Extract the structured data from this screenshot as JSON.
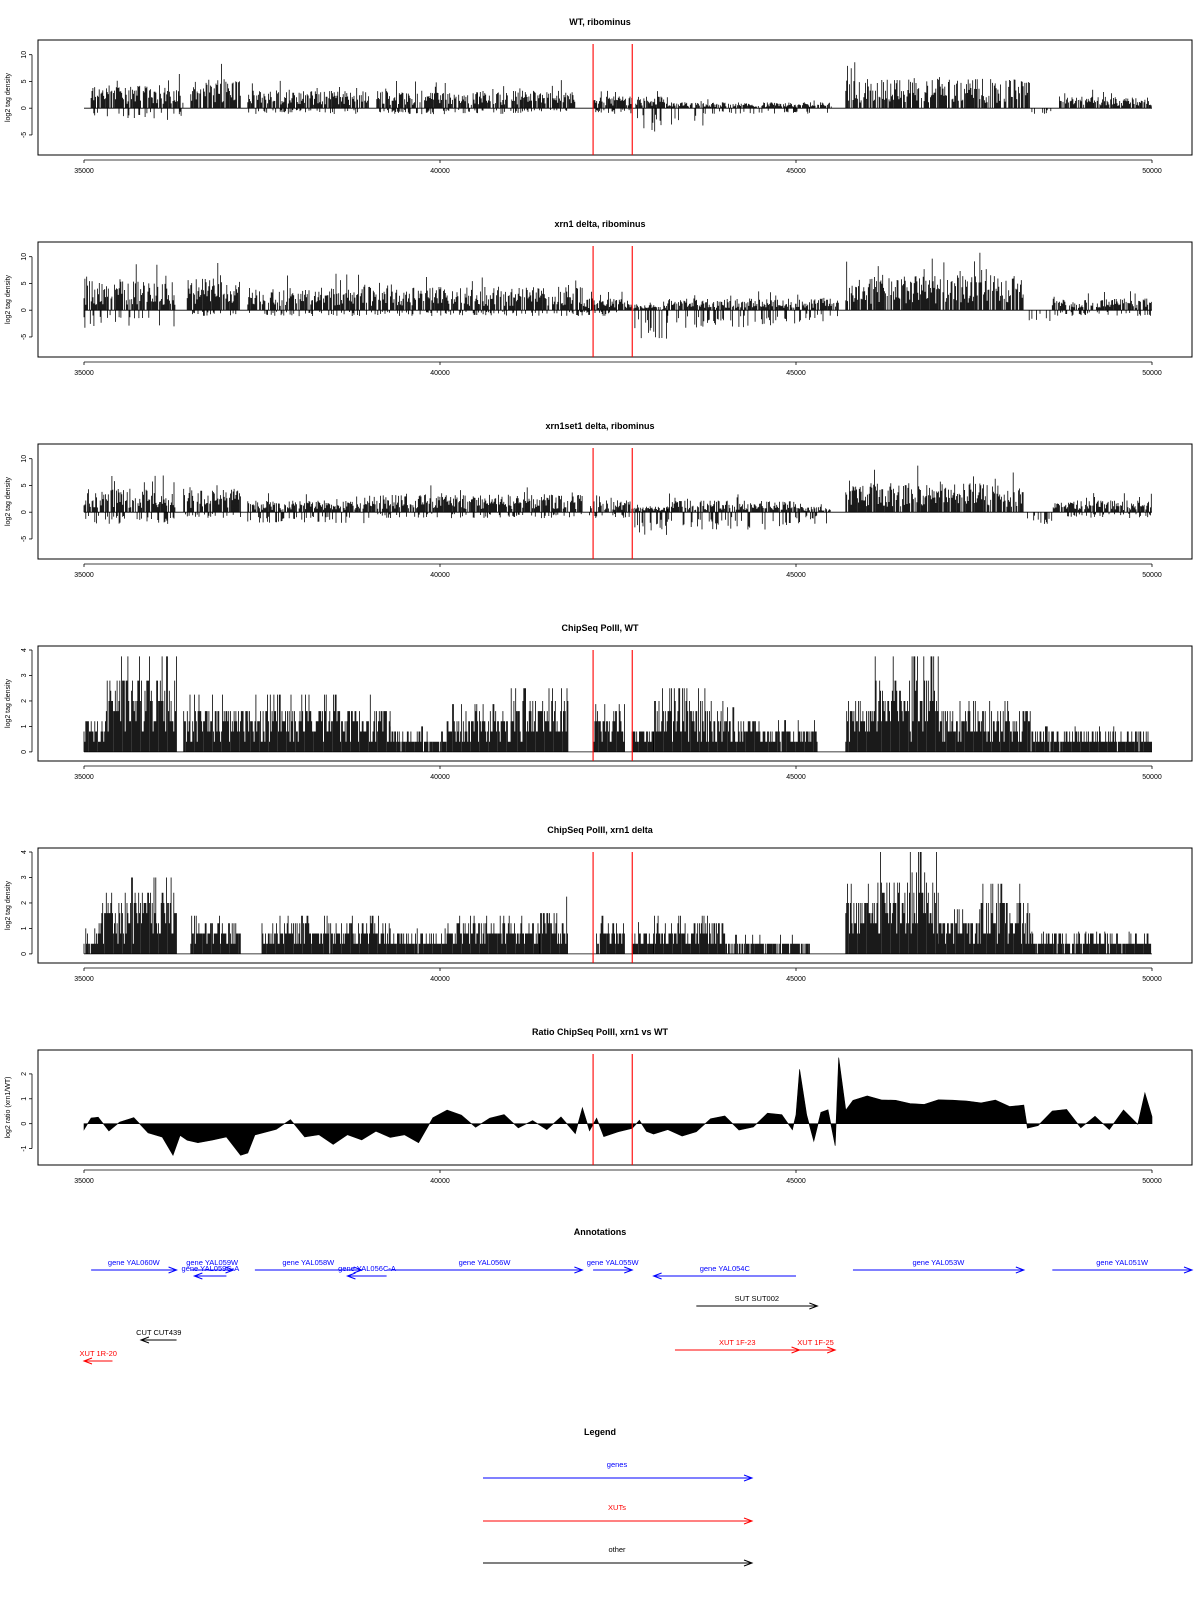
{
  "colors": {
    "gene": "#0000ff",
    "xut": "#ff0000",
    "other": "#000000",
    "marker": "#ff0000",
    "signal": "#000000"
  },
  "chart_data": [
    {
      "type": "bar",
      "title": "WT, ribominus",
      "ylabel": "log2 tag density",
      "xlim": [
        35000,
        50000
      ],
      "ylim": [
        -8,
        12
      ],
      "xticks": [
        35000,
        40000,
        45000,
        50000
      ],
      "yticks": [
        -5,
        0,
        5,
        10
      ],
      "markers": [
        42150,
        42700
      ],
      "profile": {
        "pos": [
          [
            35000,
            35100,
            0,
            0
          ],
          [
            35100,
            36400,
            4,
            2
          ],
          [
            36500,
            37200,
            5,
            0
          ],
          [
            37300,
            39000,
            3,
            1
          ],
          [
            39100,
            41900,
            3,
            1
          ],
          [
            42150,
            42700,
            2,
            1
          ],
          [
            42750,
            43200,
            2,
            4
          ],
          [
            43200,
            43700,
            1,
            3
          ],
          [
            43700,
            45500,
            1,
            1
          ],
          [
            45700,
            48300,
            5,
            0
          ],
          [
            48300,
            48600,
            0,
            1
          ],
          [
            48700,
            50000,
            2,
            0
          ]
        ]
      }
    },
    {
      "type": "bar",
      "title": "xrn1 delta, ribominus",
      "ylabel": "log2 tag density",
      "xlim": [
        35000,
        50000
      ],
      "ylim": [
        -8,
        12
      ],
      "xticks": [
        35000,
        40000,
        45000,
        50000
      ],
      "yticks": [
        -5,
        0,
        5,
        10
      ],
      "markers": [
        42150,
        42700
      ],
      "profile": {
        "pos": [
          [
            35000,
            36300,
            5,
            3
          ],
          [
            36450,
            37200,
            6,
            1
          ],
          [
            37300,
            39000,
            4,
            1
          ],
          [
            39000,
            42000,
            4,
            1
          ],
          [
            42000,
            42700,
            2,
            1
          ],
          [
            42700,
            43200,
            1,
            5
          ],
          [
            43200,
            45000,
            2,
            3
          ],
          [
            45000,
            45600,
            2,
            2
          ],
          [
            45700,
            48200,
            6,
            0
          ],
          [
            48200,
            48600,
            0,
            2
          ],
          [
            48600,
            50000,
            2,
            1
          ]
        ]
      }
    },
    {
      "type": "bar",
      "title": "xrn1set1 delta, ribominus",
      "ylabel": "log2 tag density",
      "xlim": [
        35000,
        50000
      ],
      "ylim": [
        -8,
        12
      ],
      "xticks": [
        35000,
        40000,
        45000,
        50000
      ],
      "yticks": [
        -5,
        0,
        5,
        10
      ],
      "markers": [
        42150,
        42700
      ],
      "profile": {
        "pos": [
          [
            35000,
            36300,
            4,
            2
          ],
          [
            36400,
            37200,
            4,
            1
          ],
          [
            37300,
            39000,
            2,
            2
          ],
          [
            39000,
            42000,
            3,
            1
          ],
          [
            42100,
            42700,
            2,
            1
          ],
          [
            42700,
            43200,
            1,
            4
          ],
          [
            43200,
            45000,
            2,
            3
          ],
          [
            45000,
            45500,
            1,
            2
          ],
          [
            45700,
            48200,
            5,
            0
          ],
          [
            48200,
            48600,
            0,
            2
          ],
          [
            48600,
            50000,
            2,
            1
          ]
        ]
      }
    },
    {
      "type": "bar",
      "title": "ChipSeq PolII, WT",
      "ylabel": "log2 tag density",
      "xlim": [
        35000,
        50000
      ],
      "ylim": [
        -0.2,
        4
      ],
      "xticks": [
        35000,
        40000,
        45000,
        50000
      ],
      "yticks": [
        0,
        1,
        2,
        3,
        4
      ],
      "markers": [
        42150,
        42700
      ],
      "profile": {
        "pos": [
          [
            35000,
            35300,
            1.2
          ],
          [
            35300,
            36300,
            3
          ],
          [
            36400,
            37300,
            1.8
          ],
          [
            37300,
            38300,
            1.8
          ],
          [
            38300,
            39300,
            1.8
          ],
          [
            39300,
            40100,
            0.8
          ],
          [
            40100,
            41000,
            1.5
          ],
          [
            41000,
            41800,
            2
          ],
          [
            42150,
            42600,
            1.5
          ],
          [
            42700,
            43000,
            1
          ],
          [
            43000,
            44000,
            2
          ],
          [
            44000,
            44500,
            1.4
          ],
          [
            44500,
            45300,
            1
          ],
          [
            45700,
            46100,
            1.6
          ],
          [
            46100,
            47000,
            3
          ],
          [
            47000,
            48300,
            1.6
          ],
          [
            48300,
            50000,
            0.8
          ]
        ]
      }
    },
    {
      "type": "bar",
      "title": "ChipSeq PolII, xrn1 delta",
      "ylabel": "log2 tag density",
      "xlim": [
        35000,
        50000
      ],
      "ylim": [
        -0.2,
        4
      ],
      "xticks": [
        35000,
        40000,
        45000,
        50000
      ],
      "yticks": [
        0,
        1,
        2,
        3,
        4
      ],
      "markers": [
        42150,
        42700
      ],
      "profile": {
        "pos": [
          [
            35000,
            35200,
            0.8
          ],
          [
            35200,
            36300,
            2.4
          ],
          [
            36500,
            37200,
            1.2
          ],
          [
            37500,
            38300,
            1.2
          ],
          [
            38300,
            39300,
            1.2
          ],
          [
            39300,
            40100,
            0.8
          ],
          [
            40100,
            41400,
            1.2
          ],
          [
            41400,
            41800,
            1.8
          ],
          [
            42200,
            42600,
            1.2
          ],
          [
            42700,
            43000,
            1
          ],
          [
            43000,
            44000,
            1.2
          ],
          [
            44000,
            45200,
            0.6
          ],
          [
            45700,
            46100,
            2.2
          ],
          [
            46100,
            47000,
            3.2
          ],
          [
            47000,
            47600,
            1.4
          ],
          [
            47600,
            48300,
            2.2
          ],
          [
            48300,
            50000,
            0.7
          ]
        ]
      }
    },
    {
      "type": "area",
      "title": "Ratio ChipSeq PolII, xrn1 vs WT",
      "ylabel": "log2 ratio (xrn1/WT)",
      "xlim": [
        35000,
        50000
      ],
      "ylim": [
        -1.5,
        2.8
      ],
      "xticks": [
        35000,
        40000,
        45000,
        50000
      ],
      "yticks": [
        -1,
        0,
        1,
        2
      ],
      "markers": [
        42150,
        42700
      ],
      "x": [
        35000,
        35100,
        35200,
        35350,
        35500,
        35700,
        35900,
        36100,
        36250,
        36350,
        36450,
        36600,
        36800,
        37000,
        37200,
        37300,
        37400,
        37500,
        37700,
        37900,
        38100,
        38300,
        38500,
        38700,
        38900,
        39100,
        39300,
        39500,
        39700,
        39900,
        40100,
        40300,
        40500,
        40700,
        40900,
        41100,
        41300,
        41500,
        41700,
        41900,
        42000,
        42100,
        42200,
        42300,
        42500,
        42700,
        42800,
        42900,
        43000,
        43200,
        43400,
        43600,
        43800,
        44000,
        44200,
        44400,
        44600,
        44800,
        44950,
        45000,
        45050,
        45150,
        45250,
        45350,
        45450,
        45550,
        45600,
        45700,
        45800,
        46000,
        46200,
        46400,
        46600,
        46800,
        47000,
        47200,
        47400,
        47600,
        47800,
        48000,
        48200,
        48250,
        48400,
        48600,
        48800,
        49000,
        49200,
        49400,
        49600,
        49800,
        49900,
        50000
      ],
      "y": [
        -0.2,
        0.3,
        0.2,
        -0.3,
        0.1,
        0.2,
        -0.3,
        -0.6,
        -1.2,
        -0.5,
        -0.6,
        -0.8,
        -0.7,
        -0.5,
        -1.3,
        -1.2,
        -0.5,
        -0.4,
        -0.2,
        0.2,
        -0.6,
        -0.5,
        -0.8,
        -0.4,
        -0.6,
        -0.3,
        -0.6,
        -0.4,
        -0.7,
        0.3,
        0.5,
        0.4,
        -0.2,
        0.2,
        0.3,
        -0.2,
        0.1,
        -0.3,
        0.2,
        -0.4,
        0.6,
        -0.3,
        0.2,
        -0.5,
        -0.3,
        -0.2,
        0.1,
        -0.3,
        -0.4,
        -0.2,
        -0.5,
        -0.3,
        0.2,
        0.3,
        -0.3,
        -0.1,
        0.4,
        0.3,
        -0.3,
        0.3,
        2.2,
        0.4,
        -0.7,
        0.5,
        0.6,
        -0.9,
        2.6,
        0.5,
        1,
        1.1,
        0.9,
        1,
        0.85,
        0.8,
        1,
        0.9,
        0.9,
        0.8,
        0.9,
        0.75,
        0.7,
        -0.2,
        -0.1,
        0.5,
        0.6,
        -0.2,
        0.3,
        -0.2,
        0.5,
        -0.1,
        1.2,
        0.3
      ]
    }
  ],
  "annotations": {
    "title": "Annotations",
    "features": [
      {
        "label": "gene YAL060W",
        "kind": "gene",
        "start": 35100,
        "end": 36300,
        "row": 0
      },
      {
        "label": "gene YAL059W",
        "kind": "gene",
        "start": 36500,
        "end": 37100,
        "row": 0
      },
      {
        "label": "gene YAL059C-A",
        "kind": "gene",
        "start": 36550,
        "end": 37000,
        "row": 1
      },
      {
        "label": "gene YAL058W",
        "kind": "gene",
        "start": 37400,
        "end": 38900,
        "row": 0
      },
      {
        "label": "gene YAL056C-A",
        "kind": "gene",
        "start": 38700,
        "end": 39250,
        "row": 1
      },
      {
        "label": "gene YAL056W",
        "kind": "gene",
        "start": 39250,
        "end": 42000,
        "row": 0
      },
      {
        "label": "gene YAL055W",
        "kind": "gene",
        "start": 42150,
        "end": 42700,
        "row": 0
      },
      {
        "label": "gene YAL054C",
        "kind": "gene",
        "start": 43000,
        "end": 45000,
        "row": 1
      },
      {
        "label": "gene YAL053W",
        "kind": "gene",
        "start": 45800,
        "end": 48200,
        "row": 0
      },
      {
        "label": "gene YAL051W",
        "kind": "gene",
        "start": 48600,
        "end": 51000,
        "row": 0
      },
      {
        "label": "SUT SUT002",
        "kind": "other",
        "start": 43600,
        "end": 45300,
        "row": 2
      },
      {
        "label": "CUT CUT439",
        "kind": "other",
        "start": 35800,
        "end": 36300,
        "row": 3
      },
      {
        "label": "XUT 1F-23",
        "kind": "xut",
        "start": 43300,
        "end": 45050,
        "row": 4
      },
      {
        "label": "XUT 1F-25",
        "kind": "xut",
        "start": 45000,
        "end": 45550,
        "row": 4
      },
      {
        "label": "XUT 1R-20",
        "kind": "xut",
        "start": 35000,
        "end": 35400,
        "row": 5
      }
    ]
  },
  "legend": {
    "title": "Legend",
    "entries": [
      {
        "label": "genes",
        "kind": "gene"
      },
      {
        "label": "XUTs",
        "kind": "xut"
      },
      {
        "label": "other",
        "kind": "other"
      }
    ]
  }
}
